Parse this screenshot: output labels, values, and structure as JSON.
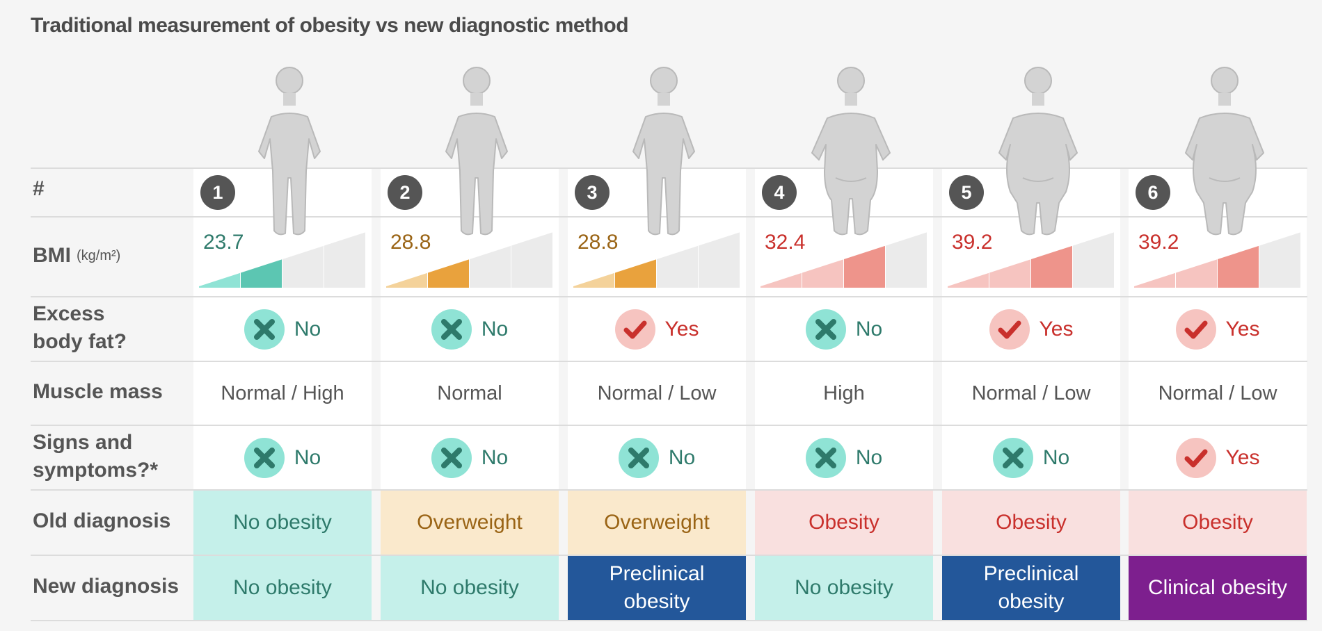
{
  "title": "Traditional measurement of obesity vs new diagnostic method",
  "row_labels": {
    "number": "#",
    "bmi": "BMI",
    "bmi_unit": "(kg/m²)",
    "excess_fat_line1": "Excess",
    "excess_fat_line2": "body fat?",
    "muscle_mass": "Muscle mass",
    "signs_line1": "Signs and",
    "signs_line2": "symptoms?*",
    "old_diagnosis": "Old diagnosis",
    "new_diagnosis": "New diagnosis"
  },
  "colors": {
    "teal_text": "#2e7a6b",
    "teal_bg": "#c5f0ea",
    "teal_icon_bg": "#8fe3d5",
    "orange_text": "#9a6415",
    "orange_bg": "#fae9cc",
    "red_text": "#c9302c",
    "red_bg": "#f9e0df",
    "red_icon_bg": "#f6c4c0",
    "blue_bg": "#23579a",
    "purple_bg": "#7d1f8e"
  },
  "people": [
    {
      "number": "1",
      "body_type": "slim",
      "bmi": "23.7",
      "bmi_level": 2,
      "bmi_palette": "teal",
      "excess_fat": "No",
      "muscle_mass": "Normal / High",
      "signs": "No",
      "old_diagnosis": "No obesity",
      "old_palette": "teal",
      "new_diagnosis_line1": "No obesity",
      "new_diagnosis_line2": "",
      "new_palette": "teal"
    },
    {
      "number": "2",
      "body_type": "slim",
      "bmi": "28.8",
      "bmi_level": 2,
      "bmi_palette": "orange",
      "excess_fat": "No",
      "muscle_mass": "Normal",
      "signs": "No",
      "old_diagnosis": "Overweight",
      "old_palette": "orange",
      "new_diagnosis_line1": "No obesity",
      "new_diagnosis_line2": "",
      "new_palette": "teal"
    },
    {
      "number": "3",
      "body_type": "slim",
      "bmi": "28.8",
      "bmi_level": 2,
      "bmi_palette": "orange",
      "excess_fat": "Yes",
      "muscle_mass": "Normal / Low",
      "signs": "No",
      "old_diagnosis": "Overweight",
      "old_palette": "orange",
      "new_diagnosis_line1": "Preclinical",
      "new_diagnosis_line2": "obesity",
      "new_palette": "blue"
    },
    {
      "number": "4",
      "body_type": "broad",
      "bmi": "32.4",
      "bmi_level": 3,
      "bmi_palette": "red",
      "excess_fat": "No",
      "muscle_mass": "High",
      "signs": "No",
      "old_diagnosis": "Obesity",
      "old_palette": "red",
      "new_diagnosis_line1": "No obesity",
      "new_diagnosis_line2": "",
      "new_palette": "teal"
    },
    {
      "number": "5",
      "body_type": "heavy",
      "bmi": "39.2",
      "bmi_level": 3,
      "bmi_palette": "red",
      "excess_fat": "Yes",
      "muscle_mass": "Normal / Low",
      "signs": "No",
      "old_diagnosis": "Obesity",
      "old_palette": "red",
      "new_diagnosis_line1": "Preclinical",
      "new_diagnosis_line2": "obesity",
      "new_palette": "blue"
    },
    {
      "number": "6",
      "body_type": "heavy",
      "bmi": "39.2",
      "bmi_level": 3,
      "bmi_palette": "red",
      "excess_fat": "Yes",
      "muscle_mass": "Normal / Low",
      "signs": "Yes",
      "old_diagnosis": "Obesity",
      "old_palette": "red",
      "new_diagnosis_line1": "Clinical obesity",
      "new_diagnosis_line2": "",
      "new_palette": "purple"
    }
  ]
}
